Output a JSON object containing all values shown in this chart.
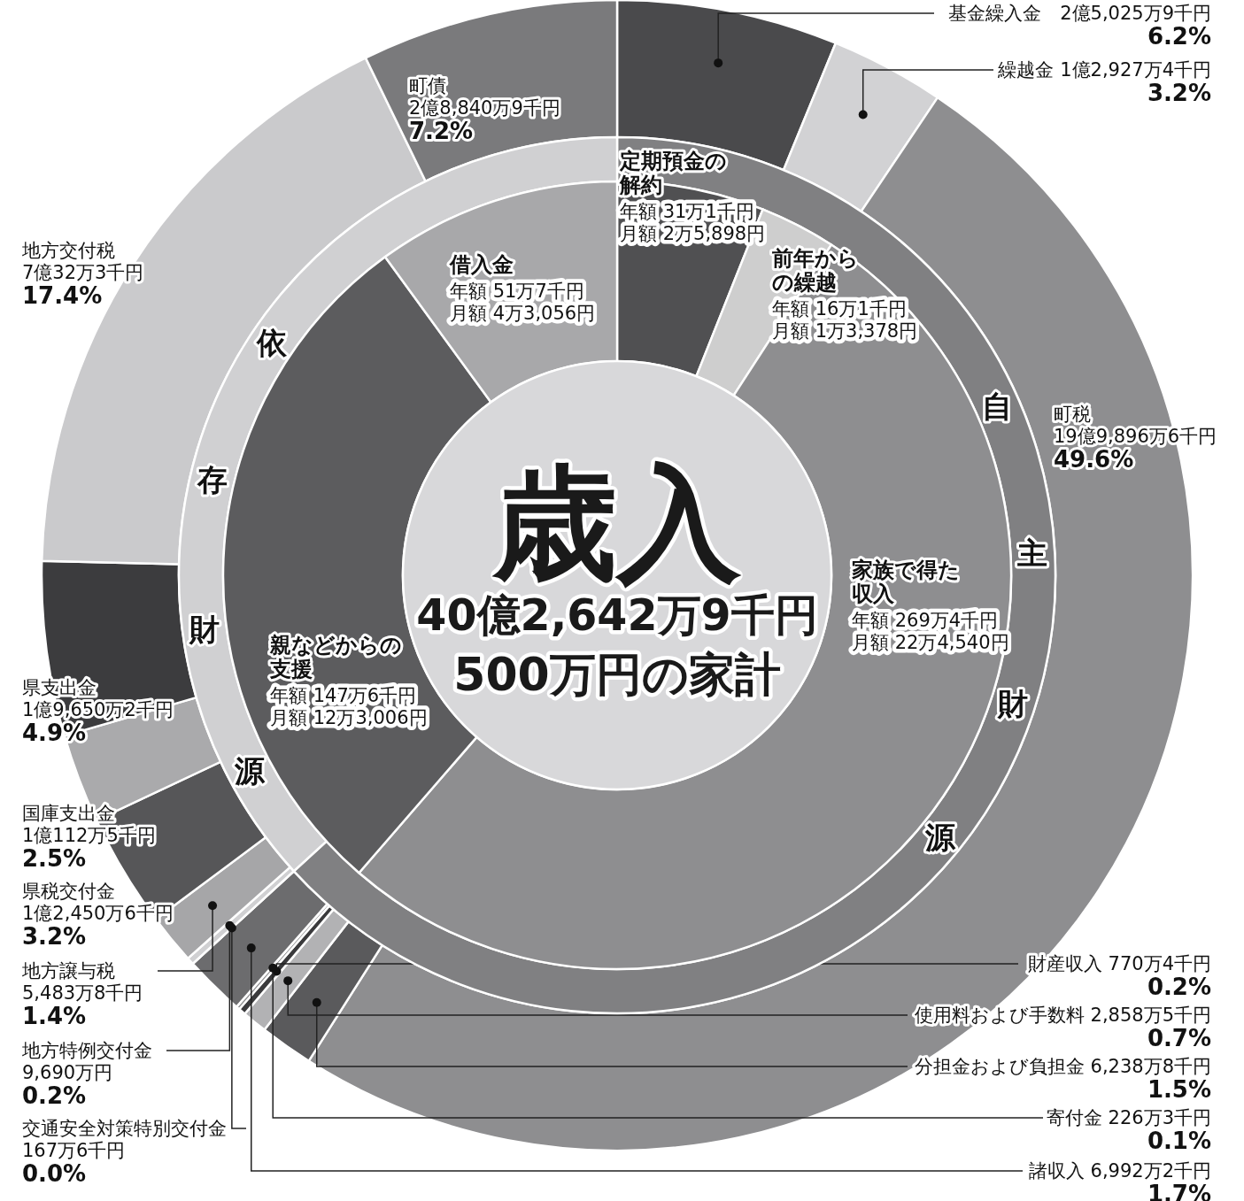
{
  "chart_data": [
    {
      "type": "donut",
      "title": "歳入",
      "subtitle": "40億2,642万9千円",
      "categories": [
        "基金繰入金　2億5,025万9千円",
        "繰越金 1億2,927万4千円",
        "町税\n19億9,896万6千円",
        "分担金および負担金 6,238万8千円",
        "使用料および手数料 2,858万5千円",
        "財産収入 770万4千円",
        "寄付金 226万3千円",
        "諸収入 6,992万2千円",
        "交通安全対策特別交付金\n167万6千円",
        "地方特例交付金\n9,690万円",
        "地方譲与税\n5,483万8千円",
        "県税交付金\n1億2,450万6千円",
        "国庫支出金\n1億112万5千円",
        "県支出金\n1億9,650万2千円",
        "地方交付税\n7億32万3千円",
        "町債\n2億8,840万9千円"
      ],
      "values": [
        6.2,
        3.2,
        49.6,
        1.5,
        0.7,
        0.2,
        0.1,
        1.7,
        0.0,
        0.2,
        1.4,
        3.2,
        2.5,
        4.9,
        17.4,
        7.2
      ],
      "value_labels": [
        "6.2%",
        "3.2%",
        "49.6%",
        "1.5%",
        "0.7%",
        "0.2%",
        "0.1%",
        "1.7%",
        "0.0%",
        "0.2%",
        "1.4%",
        "3.2%",
        "2.5%",
        "4.9%",
        "17.4%",
        "7.2%"
      ],
      "colors": [
        "#4a4a4c",
        "#d2d2d4",
        "#8e8e90",
        "#5a5a5c",
        "#b2b2b4",
        "#3a3a3c",
        "#909092",
        "#6c6c6e",
        "#c4c4c6",
        "#d0d0d2",
        "#a6a6a8",
        "#565658",
        "#aaaaac",
        "#3c3c3e",
        "#cacacc",
        "#7a7a7c"
      ]
    },
    {
      "type": "donut",
      "categories": [
        "自主財源",
        "依存財源"
      ],
      "values": [
        63.2,
        36.8
      ],
      "colors": [
        "#808082",
        "#d0d0d2"
      ]
    },
    {
      "type": "donut",
      "title": "500万円の家計",
      "categories": [
        "定期預金の解約",
        "前年からの繰越",
        "家族で得た収入",
        "親などからの支援",
        "借入金"
      ],
      "values": [
        31.1,
        16.1,
        269.4,
        147.6,
        51.7
      ],
      "value_labels": [
        "年額 31万1千円",
        "年額 16万1千円",
        "年額 269万4千円",
        "年額 147万6千円",
        "年額 51万7千円"
      ],
      "annotations": [
        "月額 2万5,898円",
        "月額 1万3,378円",
        "月額 22万4,540円",
        "月額 12万3,006円",
        "月額 4万3,056円"
      ],
      "colors": [
        "#505052",
        "#cecece",
        "#8e8e90",
        "#5c5c5e",
        "#a8a8aa"
      ]
    }
  ]
}
